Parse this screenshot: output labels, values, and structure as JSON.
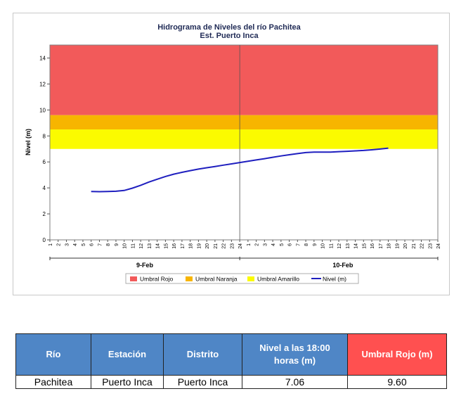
{
  "chart_data": {
    "type": "line",
    "title": "Hidrograma de Niveles del río Pachitea",
    "subtitle": "Est. Puerto Inca",
    "ylabel": "Nivel (m)",
    "xlabel": "",
    "ylim": [
      0,
      15
    ],
    "yticks": [
      0,
      2,
      4,
      6,
      8,
      10,
      12,
      14
    ],
    "hour_ticks": [
      "1",
      "2",
      "3",
      "4",
      "5",
      "6",
      "7",
      "8",
      "9",
      "10",
      "11",
      "12",
      "13",
      "14",
      "15",
      "16",
      "17",
      "18",
      "19",
      "20",
      "21",
      "22",
      "23",
      "24"
    ],
    "days": [
      "9-Feb",
      "10-Feb"
    ],
    "thresholds": [
      {
        "name": "Umbral Rojo",
        "from": 9.6,
        "to": 15,
        "color": "#f25a5a"
      },
      {
        "name": "Umbral Naranja",
        "from": 8.5,
        "to": 9.6,
        "color": "#f7b500"
      },
      {
        "name": "Umbral Amarillo",
        "from": 7.0,
        "to": 8.5,
        "color": "#fbfb00"
      }
    ],
    "series": [
      {
        "name": "Nivel (m)",
        "color": "#1f1fbf",
        "x": [
          6,
          7,
          8,
          9,
          10,
          11,
          12,
          13,
          14,
          15,
          16,
          17,
          18,
          19,
          20,
          21,
          22,
          23,
          24,
          25,
          26,
          27,
          28,
          29,
          30,
          31,
          32,
          33,
          34,
          35,
          36,
          37,
          38,
          39,
          40,
          41,
          42
        ],
        "day_labels": "x counts hours from 9-Feb 0:00",
        "values": [
          3.72,
          3.71,
          3.72,
          3.74,
          3.8,
          3.98,
          4.2,
          4.45,
          4.67,
          4.88,
          5.06,
          5.2,
          5.33,
          5.45,
          5.55,
          5.65,
          5.75,
          5.85,
          5.95,
          6.05,
          6.15,
          6.25,
          6.36,
          6.46,
          6.55,
          6.64,
          6.72,
          6.76,
          6.76,
          6.76,
          6.79,
          6.82,
          6.85,
          6.88,
          6.93,
          6.99,
          7.06
        ]
      }
    ],
    "legend": [
      "Umbral Rojo",
      "Umbral Naranja",
      "Umbral Amarillo",
      "Nivel (m)"
    ],
    "legend_position": "bottom",
    "grid": false
  },
  "table": {
    "headers": [
      "Río",
      "Estación",
      "Distrito",
      "Nivel a las 18:00 horas (m)",
      "Umbral Rojo (m)"
    ],
    "row": [
      "Pachitea",
      "Puerto Inca",
      "Puerto Inca",
      "7.06",
      "9.60"
    ]
  }
}
